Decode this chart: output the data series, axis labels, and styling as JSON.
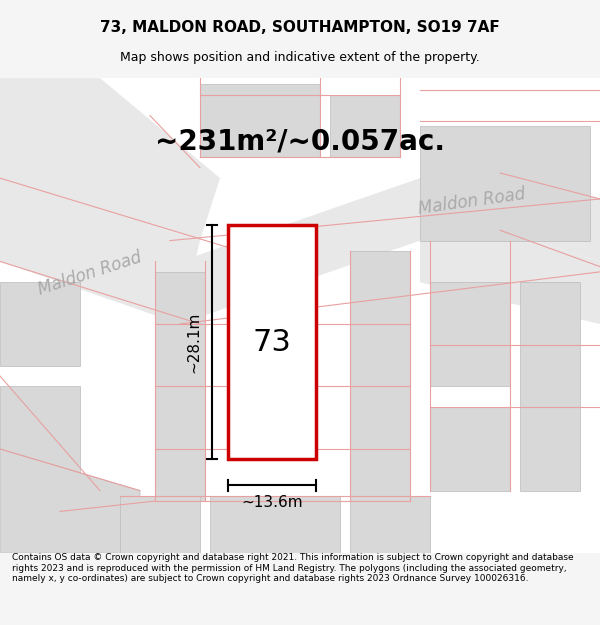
{
  "title": "73, MALDON ROAD, SOUTHAMPTON, SO19 7AF",
  "subtitle": "Map shows position and indicative extent of the property.",
  "area_text": "~231m²/~0.057ac.",
  "label_73": "73",
  "dim_height": "~28.1m",
  "dim_width": "~13.6m",
  "road_label_maldon": "Maldon Road",
  "road_label_maldon2": "Maldon Road",
  "footer": "Contains OS data © Crown copyright and database right 2021. This information is subject to Crown copyright and database rights 2023 and is reproduced with the permission of HM Land Registry. The polygons (including the associated geometry, namely x, y co-ordinates) are subject to Crown copyright and database rights 2023 Ordnance Survey 100026316.",
  "bg_color": "#f5f5f5",
  "map_bg": "#ffffff",
  "plot_rect_color": "#cc0000",
  "plot_fill": "#ffffff",
  "road_fill": "#e0e0e0",
  "building_fill": "#d8d8d8",
  "light_road_stroke": "#e8a0a0",
  "title_fontsize": 11,
  "subtitle_fontsize": 9,
  "area_fontsize": 20,
  "label_fontsize": 22,
  "dim_fontsize": 11,
  "road_fontsize": 12,
  "footer_fontsize": 6.5
}
